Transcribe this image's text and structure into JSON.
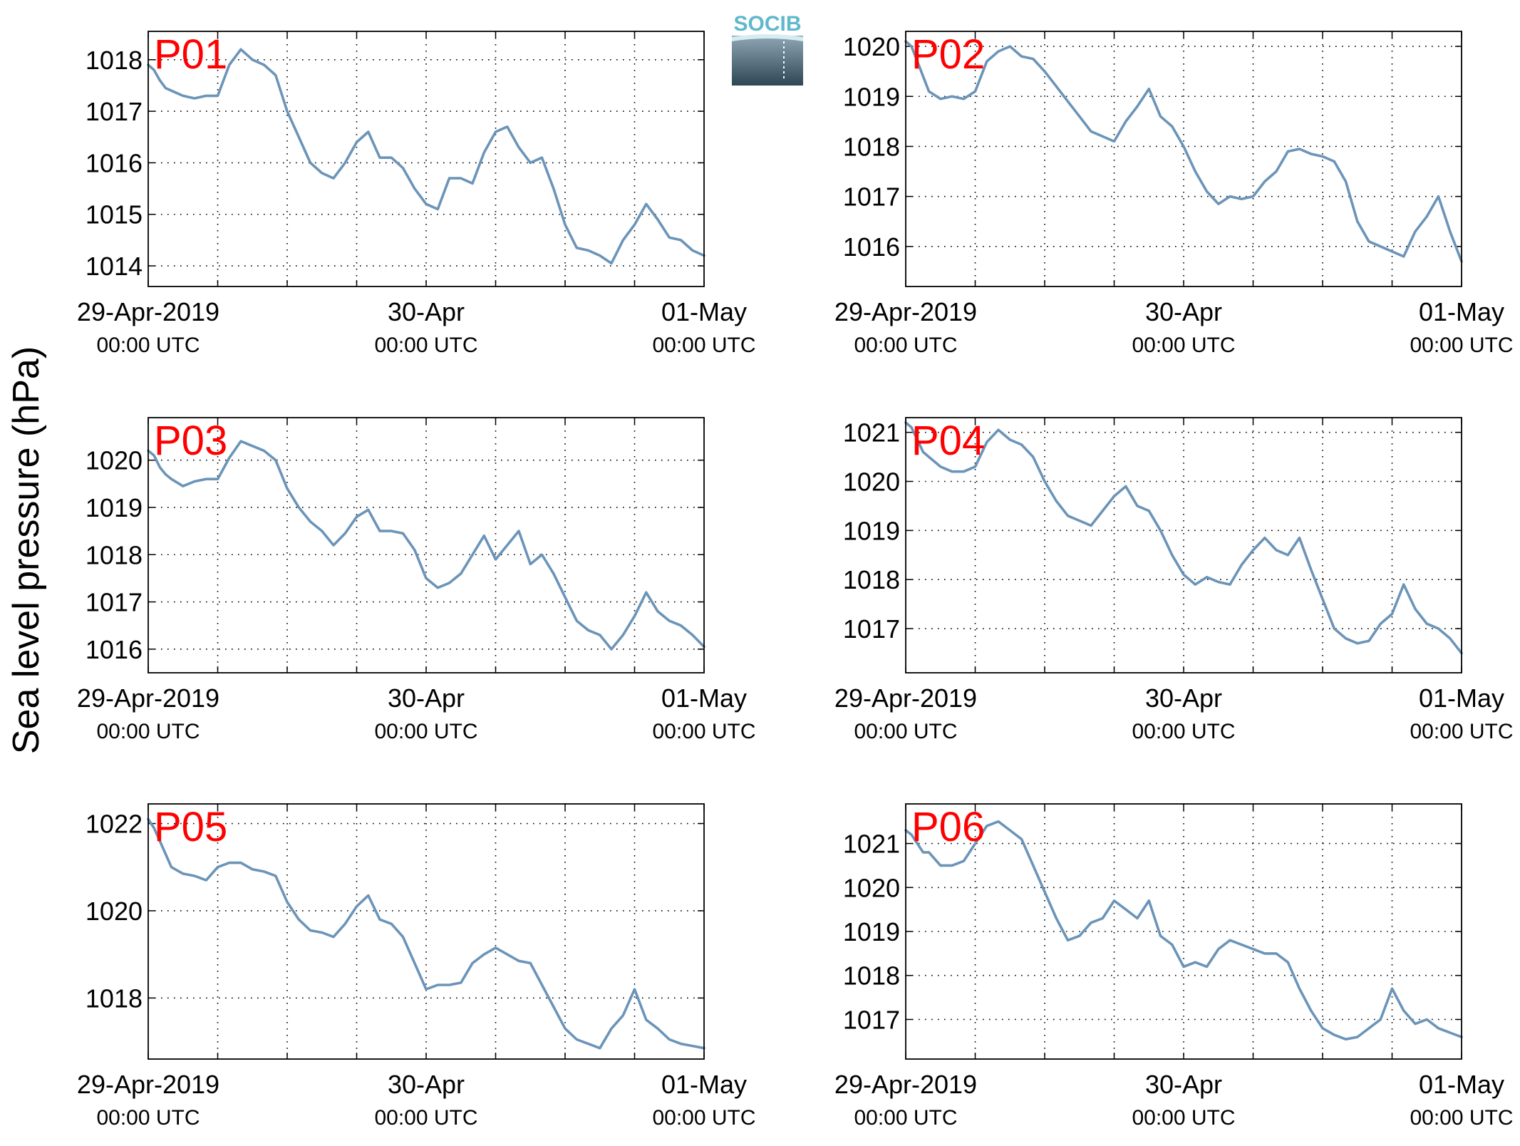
{
  "figure": {
    "ylabel": "Sea level pressure (hPa)",
    "logo_text": "SOCIB",
    "x_tick_labels": [
      {
        "date": "29-Apr-2019",
        "time": "00:00 UTC"
      },
      {
        "date": "30-Apr",
        "time": "00:00 UTC"
      },
      {
        "date": "01-May",
        "time": "00:00 UTC"
      }
    ],
    "colors": {
      "line": "#6b94b8",
      "label": "#ff0000",
      "grid": "#000000"
    }
  },
  "chart_data": [
    {
      "type": "line",
      "title": "P01",
      "x_unit": "hours since 29-Apr-2019 00:00 UTC",
      "xlim": [
        0,
        48
      ],
      "ylim": [
        1013.6,
        1018.55
      ],
      "yticks": [
        1014,
        1015,
        1016,
        1017,
        1018
      ],
      "xticks": [
        0,
        6,
        12,
        18,
        24,
        30,
        36,
        42,
        48
      ],
      "x": [
        0,
        0.5,
        1,
        1.5,
        2,
        3,
        4,
        5,
        6,
        7,
        8,
        9,
        10,
        11,
        12,
        13,
        14,
        15,
        16,
        17,
        18,
        19,
        20,
        21,
        22,
        23,
        24,
        25,
        26,
        27,
        28,
        29,
        30,
        31,
        32,
        33,
        34,
        35,
        36,
        37,
        38,
        39,
        40,
        41,
        42,
        43,
        44,
        45,
        46,
        47,
        48
      ],
      "values": [
        1017.9,
        1017.8,
        1017.6,
        1017.45,
        1017.4,
        1017.3,
        1017.25,
        1017.3,
        1017.3,
        1017.9,
        1018.2,
        1018.0,
        1017.9,
        1017.7,
        1017.0,
        1016.5,
        1016.0,
        1015.8,
        1015.7,
        1016.0,
        1016.4,
        1016.6,
        1016.1,
        1016.1,
        1015.9,
        1015.5,
        1015.2,
        1015.1,
        1015.7,
        1015.7,
        1015.6,
        1016.2,
        1016.6,
        1016.7,
        1016.3,
        1016.0,
        1016.1,
        1015.5,
        1014.8,
        1014.35,
        1014.3,
        1014.2,
        1014.05,
        1014.5,
        1014.8,
        1015.2,
        1014.9,
        1014.55,
        1014.5,
        1014.3,
        1014.2
      ]
    },
    {
      "type": "line",
      "title": "P02",
      "x_unit": "hours since 29-Apr-2019 00:00 UTC",
      "xlim": [
        0,
        48
      ],
      "ylim": [
        1015.2,
        1020.3
      ],
      "yticks": [
        1016,
        1017,
        1018,
        1019,
        1020
      ],
      "xticks": [
        0,
        6,
        12,
        18,
        24,
        30,
        36,
        42,
        48
      ],
      "x": [
        0,
        0.5,
        1,
        1.5,
        2,
        3,
        4,
        5,
        6,
        7,
        8,
        9,
        10,
        11,
        12,
        13,
        14,
        15,
        16,
        17,
        18,
        19,
        20,
        21,
        22,
        23,
        24,
        25,
        26,
        27,
        28,
        29,
        30,
        31,
        32,
        33,
        34,
        35,
        36,
        37,
        38,
        39,
        40,
        41,
        42,
        43,
        44,
        45,
        46,
        47,
        48
      ],
      "values": [
        1020.1,
        1020.0,
        1019.7,
        1019.4,
        1019.1,
        1018.95,
        1019.0,
        1018.95,
        1019.1,
        1019.7,
        1019.9,
        1020.0,
        1019.8,
        1019.75,
        1019.5,
        1019.2,
        1018.9,
        1018.6,
        1018.3,
        1018.2,
        1018.1,
        1018.5,
        1018.8,
        1019.15,
        1018.6,
        1018.4,
        1018.0,
        1017.5,
        1017.1,
        1016.85,
        1017.0,
        1016.95,
        1017.0,
        1017.3,
        1017.5,
        1017.9,
        1017.95,
        1017.85,
        1017.8,
        1017.7,
        1017.3,
        1016.5,
        1016.1,
        1016.0,
        1015.9,
        1015.8,
        1016.3,
        1016.6,
        1017.0,
        1016.3,
        1015.7
      ]
    },
    {
      "type": "line",
      "title": "P03",
      "x_unit": "hours since 29-Apr-2019 00:00 UTC",
      "xlim": [
        0,
        48
      ],
      "ylim": [
        1015.5,
        1020.9
      ],
      "yticks": [
        1016,
        1017,
        1018,
        1019,
        1020
      ],
      "xticks": [
        0,
        6,
        12,
        18,
        24,
        30,
        36,
        42,
        48
      ],
      "x": [
        0,
        0.5,
        1,
        1.5,
        2,
        3,
        4,
        5,
        6,
        7,
        8,
        9,
        10,
        11,
        12,
        13,
        14,
        15,
        16,
        17,
        18,
        19,
        20,
        21,
        22,
        23,
        24,
        25,
        26,
        27,
        28,
        29,
        30,
        31,
        32,
        33,
        34,
        35,
        36,
        37,
        38,
        39,
        40,
        41,
        42,
        43,
        44,
        45,
        46,
        47,
        48
      ],
      "values": [
        1020.2,
        1020.1,
        1019.85,
        1019.7,
        1019.6,
        1019.45,
        1019.55,
        1019.6,
        1019.6,
        1020.05,
        1020.4,
        1020.3,
        1020.2,
        1020.0,
        1019.4,
        1019.0,
        1018.7,
        1018.5,
        1018.2,
        1018.45,
        1018.8,
        1018.95,
        1018.5,
        1018.5,
        1018.45,
        1018.1,
        1017.5,
        1017.3,
        1017.4,
        1017.6,
        1018.0,
        1018.4,
        1017.9,
        1018.2,
        1018.5,
        1017.8,
        1018.0,
        1017.6,
        1017.1,
        1016.6,
        1016.4,
        1016.3,
        1016.0,
        1016.3,
        1016.7,
        1017.2,
        1016.8,
        1016.6,
        1016.5,
        1016.3,
        1016.05
      ]
    },
    {
      "type": "line",
      "title": "P04",
      "x_unit": "hours since 29-Apr-2019 00:00 UTC",
      "xlim": [
        0,
        48
      ],
      "ylim": [
        1016.1,
        1021.3
      ],
      "yticks": [
        1017,
        1018,
        1019,
        1020,
        1021
      ],
      "xticks": [
        0,
        6,
        12,
        18,
        24,
        30,
        36,
        42,
        48
      ],
      "x": [
        0,
        0.5,
        1,
        1.5,
        2,
        3,
        4,
        5,
        6,
        7,
        8,
        9,
        10,
        11,
        12,
        13,
        14,
        15,
        16,
        17,
        18,
        19,
        20,
        21,
        22,
        23,
        24,
        25,
        26,
        27,
        28,
        29,
        30,
        31,
        32,
        33,
        34,
        35,
        36,
        37,
        38,
        39,
        40,
        41,
        42,
        43,
        44,
        45,
        46,
        47,
        48
      ],
      "values": [
        1021.2,
        1021.1,
        1020.85,
        1020.6,
        1020.5,
        1020.3,
        1020.2,
        1020.2,
        1020.3,
        1020.8,
        1021.05,
        1020.85,
        1020.75,
        1020.5,
        1020.0,
        1019.6,
        1019.3,
        1019.2,
        1019.1,
        1019.4,
        1019.7,
        1019.9,
        1019.5,
        1019.4,
        1019.0,
        1018.5,
        1018.1,
        1017.9,
        1018.05,
        1017.95,
        1017.9,
        1018.3,
        1018.6,
        1018.85,
        1018.6,
        1018.5,
        1018.85,
        1018.2,
        1017.6,
        1017.0,
        1016.8,
        1016.7,
        1016.75,
        1017.1,
        1017.3,
        1017.9,
        1017.4,
        1017.1,
        1017.0,
        1016.8,
        1016.5
      ]
    },
    {
      "type": "line",
      "title": "P05",
      "x_unit": "hours since 29-Apr-2019 00:00 UTC",
      "xlim": [
        0,
        48
      ],
      "ylim": [
        1016.6,
        1022.45
      ],
      "yticks": [
        1018,
        1020,
        1022
      ],
      "xticks": [
        0,
        6,
        12,
        18,
        24,
        30,
        36,
        42,
        48
      ],
      "x": [
        0,
        0.5,
        1,
        1.5,
        2,
        3,
        4,
        5,
        6,
        7,
        8,
        9,
        10,
        11,
        12,
        13,
        14,
        15,
        16,
        17,
        18,
        19,
        20,
        21,
        22,
        23,
        24,
        25,
        26,
        27,
        28,
        29,
        30,
        31,
        32,
        33,
        34,
        35,
        36,
        37,
        38,
        39,
        40,
        41,
        42,
        43,
        44,
        45,
        46,
        47,
        48
      ],
      "values": [
        1022.1,
        1021.9,
        1021.6,
        1021.3,
        1021.0,
        1020.85,
        1020.8,
        1020.7,
        1021.0,
        1021.1,
        1021.1,
        1020.95,
        1020.9,
        1020.8,
        1020.2,
        1019.8,
        1019.55,
        1019.5,
        1019.4,
        1019.7,
        1020.1,
        1020.35,
        1019.8,
        1019.7,
        1019.4,
        1018.8,
        1018.2,
        1018.3,
        1018.3,
        1018.35,
        1018.8,
        1019.0,
        1019.15,
        1019.0,
        1018.85,
        1018.8,
        1018.3,
        1017.8,
        1017.3,
        1017.05,
        1016.95,
        1016.85,
        1017.3,
        1017.6,
        1018.2,
        1017.5,
        1017.3,
        1017.05,
        1016.95,
        1016.9,
        1016.85
      ]
    },
    {
      "type": "line",
      "title": "P06",
      "x_unit": "hours since 29-Apr-2019 00:00 UTC",
      "xlim": [
        0,
        48
      ],
      "ylim": [
        1016.1,
        1021.9
      ],
      "yticks": [
        1017,
        1018,
        1019,
        1020,
        1021
      ],
      "xticks": [
        0,
        6,
        12,
        18,
        24,
        30,
        36,
        42,
        48
      ],
      "x": [
        0,
        0.5,
        1,
        1.5,
        2,
        3,
        4,
        5,
        6,
        7,
        8,
        9,
        10,
        11,
        12,
        13,
        14,
        15,
        16,
        17,
        18,
        19,
        20,
        21,
        22,
        23,
        24,
        25,
        26,
        27,
        28,
        29,
        30,
        31,
        32,
        33,
        34,
        35,
        36,
        37,
        38,
        39,
        40,
        41,
        42,
        43,
        44,
        45,
        46,
        47,
        48
      ],
      "values": [
        1021.3,
        1021.2,
        1021.0,
        1020.8,
        1020.8,
        1020.5,
        1020.5,
        1020.6,
        1021.0,
        1021.4,
        1021.5,
        1021.3,
        1021.1,
        1020.5,
        1019.9,
        1019.3,
        1018.8,
        1018.9,
        1019.2,
        1019.3,
        1019.7,
        1019.5,
        1019.3,
        1019.7,
        1018.9,
        1018.7,
        1018.2,
        1018.3,
        1018.2,
        1018.6,
        1018.8,
        1018.7,
        1018.6,
        1018.5,
        1018.5,
        1018.3,
        1017.7,
        1017.2,
        1016.8,
        1016.65,
        1016.55,
        1016.6,
        1016.8,
        1017.0,
        1017.7,
        1017.2,
        1016.9,
        1017.0,
        1016.8,
        1016.7,
        1016.6
      ]
    }
  ]
}
